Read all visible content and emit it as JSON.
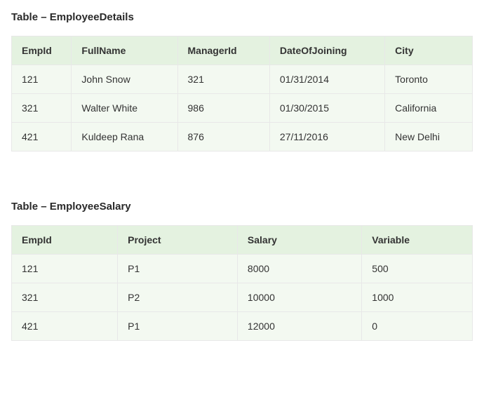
{
  "table1": {
    "title": "Table – EmployeeDetails",
    "columns": [
      "EmpId",
      "FullName",
      "ManagerId",
      "DateOfJoining",
      "City"
    ],
    "col_widths": [
      "13%",
      "23%",
      "20%",
      "25%",
      "19%"
    ],
    "rows": [
      [
        "121",
        "John Snow",
        "321",
        "01/31/2014",
        "Toronto"
      ],
      [
        "321",
        "Walter White",
        "986",
        "01/30/2015",
        "California"
      ],
      [
        "421",
        "Kuldeep Rana",
        "876",
        "27/11/2016",
        "New Delhi"
      ]
    ]
  },
  "table2": {
    "title": "Table – EmployeeSalary",
    "columns": [
      "EmpId",
      "Project",
      "Salary",
      "Variable"
    ],
    "col_widths": [
      "23%",
      "26%",
      "27%",
      "24%"
    ],
    "rows": [
      [
        "121",
        "P1",
        "8000",
        "500"
      ],
      [
        "321",
        "P2",
        "10000",
        "1000"
      ],
      [
        "421",
        "P1",
        "12000",
        "0"
      ]
    ]
  },
  "colors": {
    "header_bg": "#e4f2e0",
    "row_bg": "#f3f9f1",
    "border": "#e8e8e8",
    "text": "#333333",
    "title": "#2a2a2a"
  }
}
